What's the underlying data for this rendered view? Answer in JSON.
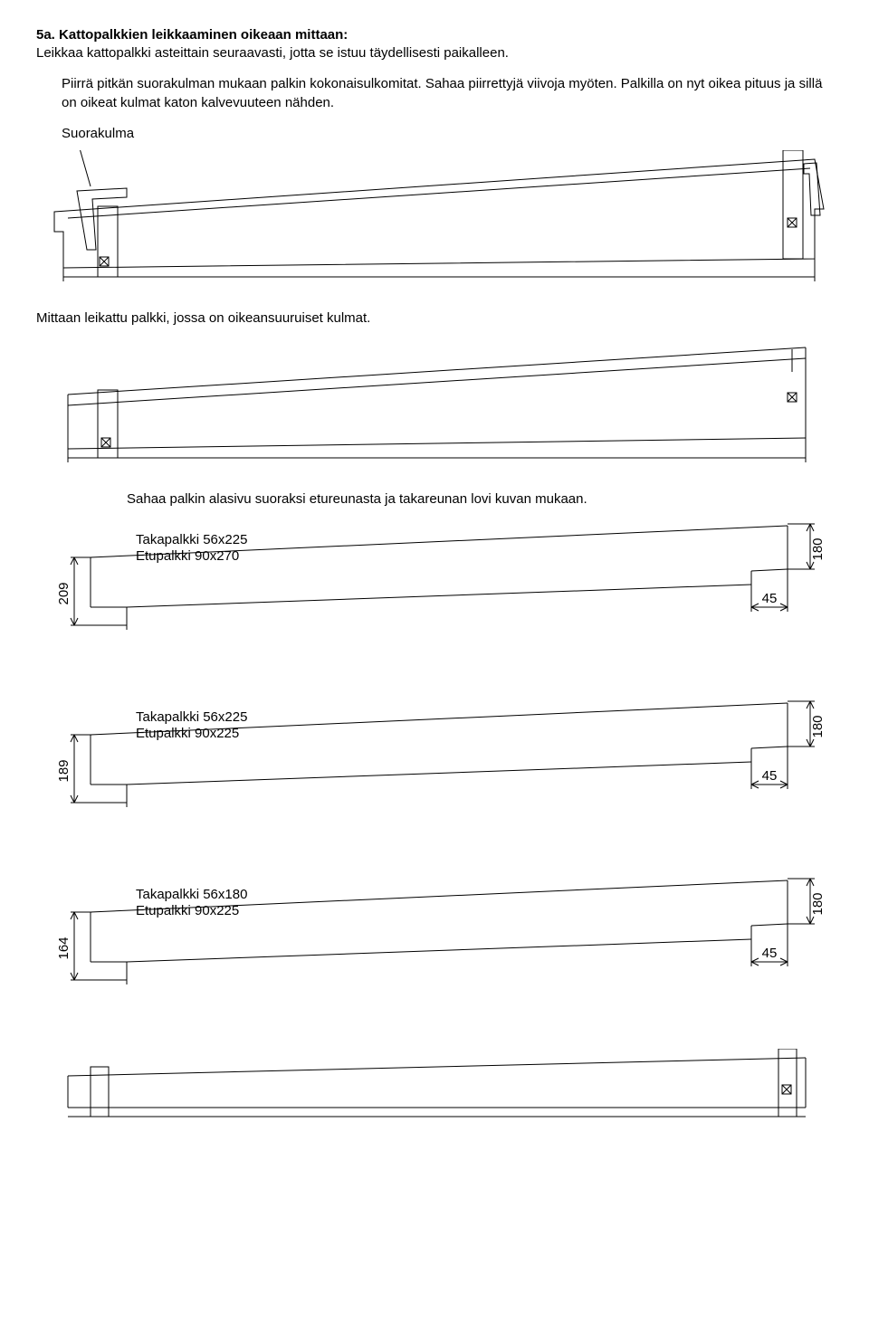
{
  "title": "5a. Kattopalkkien leikkaaminen oikeaan mittaan:",
  "intro": "Leikkaa kattopalkki asteittain seuraavasti, jotta se istuu täydellisesti paikalleen.",
  "step1": "Piirrä pitkän suorakulman mukaan palkin kokonaisulkomitat. Sahaa piirrettyjä viivoja myöten. Palkilla on nyt oikea pituus ja sillä on oikeat kulmat katon kalvevuuteen nähden.",
  "label_suorakulma": "Suorakulma",
  "caption_mittaan": "Mittaan leikattu palkki, jossa on oikeansuuruiset kulmat.",
  "saha_text": "Sahaa palkin alasivu suoraksi etureunasta ja takareunan lovi kuvan mukaan.",
  "beams": [
    {
      "left_dim": "209",
      "taka": "Takapalkki 56x225",
      "etu": "Etupalkki 90x270",
      "right_dim": "180",
      "notch": "45"
    },
    {
      "left_dim": "189",
      "taka": "Takapalkki 56x225",
      "etu": "Etupalkki 90x225",
      "right_dim": "180",
      "notch": "45"
    },
    {
      "left_dim": "164",
      "taka": "Takapalkki 56x180",
      "etu": "Etupalkki 90x225",
      "right_dim": "180",
      "notch": "45"
    }
  ],
  "stroke": "#000000",
  "stroke_width": 1
}
